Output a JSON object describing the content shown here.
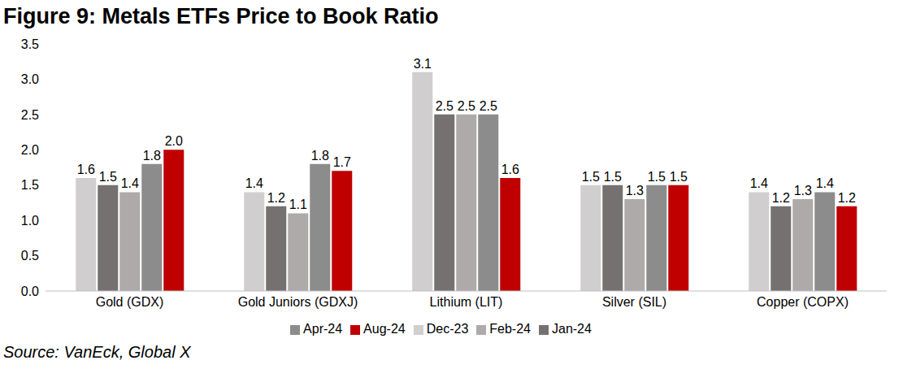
{
  "chart_data": {
    "type": "bar",
    "title": "Figure 9: Metals ETFs Price to Book Ratio",
    "subtitle": "Source: VanEck, Global X",
    "categories": [
      "Gold (GDX)",
      "Gold Juniors (GDXJ)",
      "Lithium (LIT)",
      "Silver (SIL)",
      "Copper (COPX)"
    ],
    "series": [
      {
        "name": "Dec-23",
        "color": "#d0cece",
        "values": [
          1.6,
          1.4,
          3.1,
          1.5,
          1.4
        ],
        "value_labels": [
          "1.6",
          "1.4",
          "3.1",
          "1.5",
          "1.4"
        ]
      },
      {
        "name": "Jan-24",
        "color": "#767171",
        "values": [
          1.5,
          1.2,
          2.5,
          1.5,
          1.2
        ],
        "value_labels": [
          "1.5",
          "1.2",
          "2.5",
          "1.5",
          "1.2"
        ]
      },
      {
        "name": "Feb-24",
        "color": "#aeaaaa",
        "values": [
          1.4,
          1.1,
          2.5,
          1.3,
          1.3
        ],
        "value_labels": [
          "1.4",
          "1.1",
          "2.5",
          "1.3",
          "1.3"
        ]
      },
      {
        "name": "Apr-24",
        "color": "#8c8c8c",
        "values": [
          1.8,
          1.8,
          2.5,
          1.5,
          1.4
        ],
        "value_labels": [
          "1.8",
          "1.8",
          "2.5",
          "1.5",
          "1.4"
        ]
      },
      {
        "name": "Aug-24",
        "color": "#c00000",
        "values": [
          2.0,
          1.7,
          1.6,
          1.5,
          1.2
        ],
        "value_labels": [
          "2.0",
          "1.7",
          "1.6",
          "1.5",
          "1.2"
        ]
      }
    ],
    "ylim": [
      0,
      3.5
    ],
    "yticks": [
      {
        "value": 0,
        "label": "0.0"
      },
      0.5,
      {
        "value": 1,
        "label": "1.0"
      },
      1.5,
      {
        "value": 2,
        "label": "2.0"
      },
      2.5,
      {
        "value": 3,
        "label": "3.0"
      },
      3.5
    ],
    "grid": false,
    "legend": "bottom",
    "data_labels": true
  }
}
